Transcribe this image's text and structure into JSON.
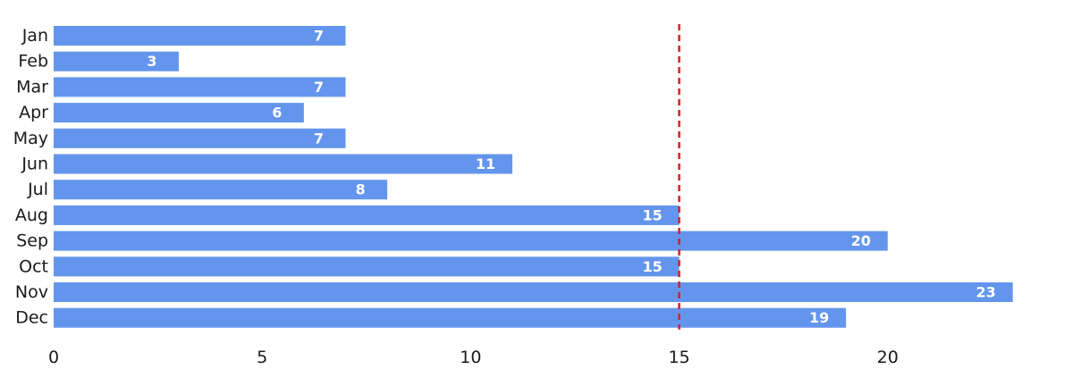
{
  "chart_data": {
    "type": "bar",
    "orientation": "horizontal",
    "categories": [
      "Jan",
      "Feb",
      "Mar",
      "Apr",
      "May",
      "Jun",
      "Jul",
      "Aug",
      "Sep",
      "Oct",
      "Nov",
      "Dec"
    ],
    "values": [
      7,
      3,
      7,
      6,
      7,
      11,
      8,
      15,
      20,
      15,
      23,
      19
    ],
    "xlim": [
      0,
      23.5
    ],
    "xticks": [
      0,
      5,
      10,
      15,
      20
    ],
    "reference_line": {
      "x": 15,
      "style": "dashed",
      "color": "#e31a1c"
    },
    "bar_color": "#6495ed",
    "data_labels": "inside-end",
    "grid": false,
    "title": "",
    "xlabel": "",
    "ylabel": ""
  }
}
